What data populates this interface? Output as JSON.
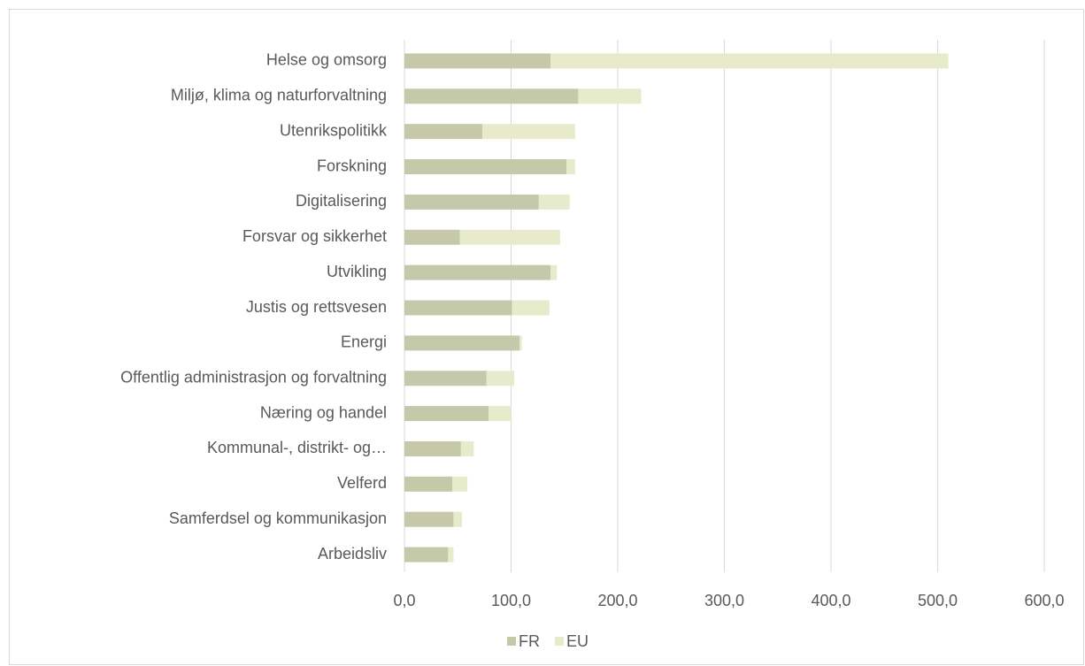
{
  "chart_data": {
    "type": "stacked-bar-horizontal",
    "categories": [
      "Helse og omsorg",
      "Miljø, klima og naturforvaltning",
      "Utenrikspolitikk",
      "Forskning",
      "Digitalisering",
      "Forsvar og sikkerhet",
      "Utvikling",
      "Justis og rettsvesen",
      "Energi",
      "Offentlig administrasjon og forvaltning",
      "Næring og handel",
      "Kommunal-, distrikt- og…",
      "Velferd",
      "Samferdsel og kommunikasjon",
      "Arbeidsliv"
    ],
    "series": [
      {
        "name": "FR",
        "color": "#c5c9a9",
        "values": [
          137,
          163,
          73,
          152,
          126,
          52,
          137,
          101,
          108,
          77,
          79,
          53,
          45,
          46,
          41
        ]
      },
      {
        "name": "EU",
        "color": "#e7ebcb",
        "values": [
          373,
          59,
          87,
          8,
          29,
          94,
          6,
          35,
          2,
          26,
          21,
          12,
          14,
          8,
          5
        ]
      }
    ],
    "xlim": [
      0,
      600
    ],
    "xticks": [
      {
        "value": 0,
        "label": "0,0"
      },
      {
        "value": 100,
        "label": "100,0"
      },
      {
        "value": 200,
        "label": "200,0"
      },
      {
        "value": 300,
        "label": "300,0"
      },
      {
        "value": 400,
        "label": "400,0"
      },
      {
        "value": 500,
        "label": "500,0"
      },
      {
        "value": 600,
        "label": "600,0"
      }
    ],
    "grid": true,
    "legend": "bottom"
  }
}
